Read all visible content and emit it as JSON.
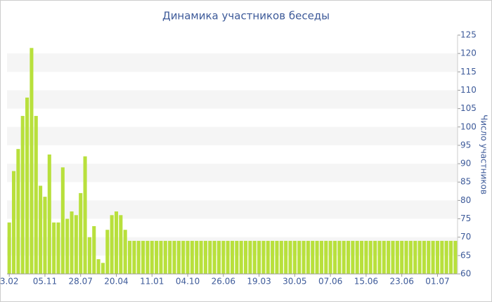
{
  "chart_data": {
    "type": "bar",
    "title": "Динамика участников беседы",
    "y_label": "Число участников",
    "categories": [
      "3.02",
      null,
      null,
      null,
      null,
      null,
      null,
      null,
      "05.11",
      null,
      null,
      null,
      null,
      null,
      null,
      null,
      "28.07",
      null,
      null,
      null,
      null,
      null,
      null,
      null,
      "20.04",
      null,
      null,
      null,
      null,
      null,
      null,
      null,
      "11.01",
      null,
      null,
      null,
      null,
      null,
      null,
      null,
      "04.10",
      null,
      null,
      null,
      null,
      null,
      null,
      null,
      "26.06",
      null,
      null,
      null,
      null,
      null,
      null,
      null,
      "19.03",
      null,
      null,
      null,
      null,
      null,
      null,
      null,
      "30.05",
      null,
      null,
      null,
      null,
      null,
      null,
      null,
      "07.06",
      null,
      null,
      null,
      null,
      null,
      null,
      null,
      "15.06",
      null,
      null,
      null,
      null,
      null,
      null,
      null,
      "23.06",
      null,
      null,
      null,
      null,
      null,
      null,
      null,
      "01.07",
      null,
      null,
      null,
      null
    ],
    "values": [
      74,
      88,
      94,
      103,
      108,
      121.5,
      103,
      84,
      81,
      92.5,
      74,
      74,
      89,
      75,
      77,
      76,
      82,
      92,
      70,
      73,
      64,
      63,
      72,
      76,
      77,
      76,
      72,
      69,
      69,
      69,
      69,
      69,
      69,
      69,
      69,
      69,
      69,
      69,
      69,
      69,
      69,
      69,
      69,
      69,
      69,
      69,
      69,
      69,
      69,
      69,
      69,
      69,
      69,
      69,
      69,
      69,
      69,
      69,
      69,
      69,
      69,
      69,
      69,
      69,
      69,
      69,
      69,
      69,
      69,
      69,
      69,
      69,
      69,
      69,
      69,
      69,
      69,
      69,
      69,
      69,
      69,
      69,
      69,
      69,
      69,
      69,
      69,
      69,
      69,
      69,
      69,
      69,
      69,
      69,
      69,
      69,
      69,
      69,
      69,
      69,
      69
    ],
    "color": "#b8e03c",
    "ylim": [
      60,
      125
    ],
    "yticks": [
      60,
      65,
      70,
      75,
      80,
      85,
      90,
      95,
      100,
      105,
      110,
      115,
      120,
      125
    ],
    "grid": "bands",
    "y_axis_side": "right"
  }
}
